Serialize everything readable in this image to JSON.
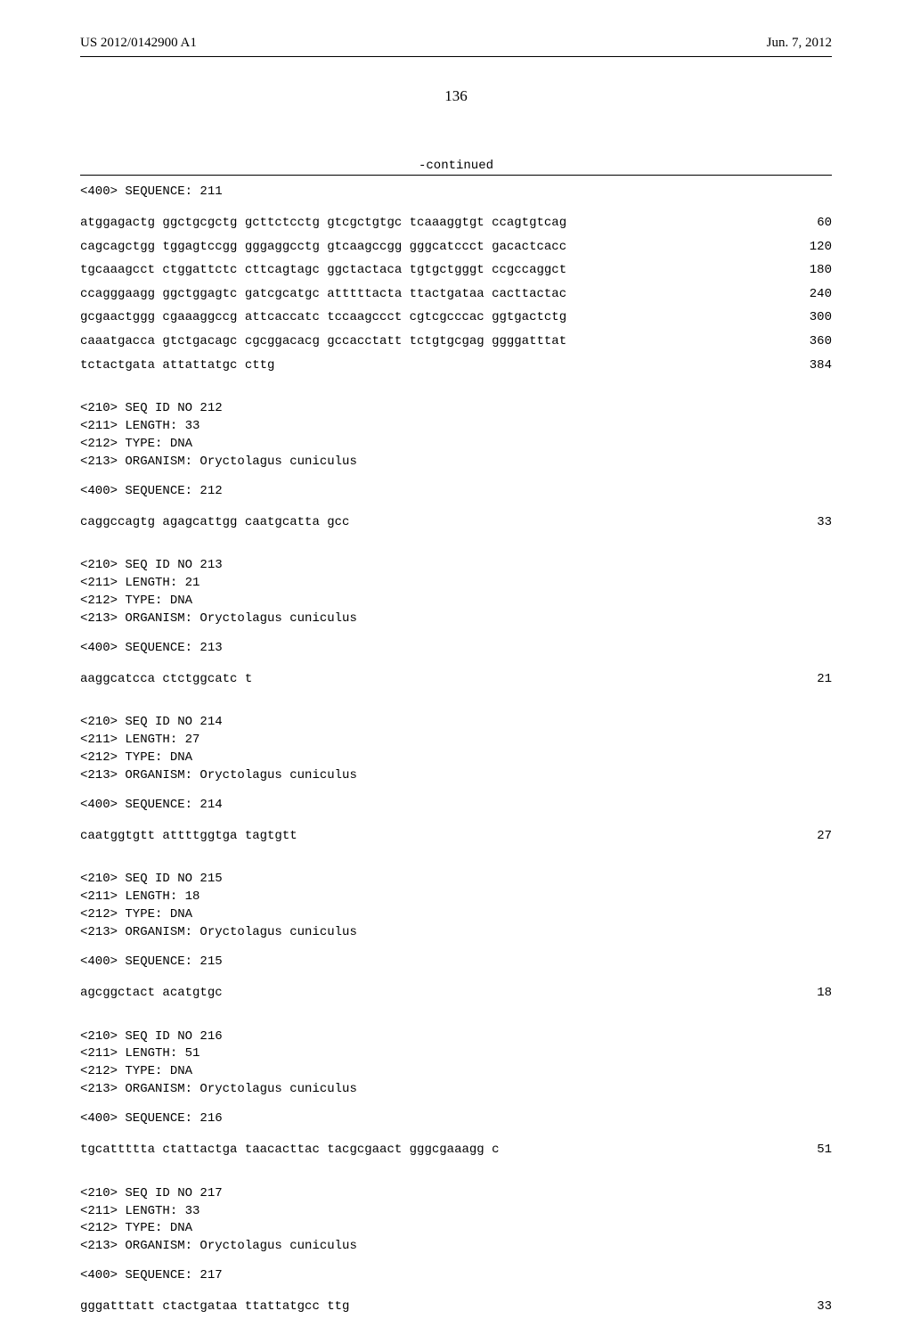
{
  "header": {
    "left": "US 2012/0142900 A1",
    "right": "Jun. 7, 2012"
  },
  "page_number": "136",
  "continued_label": "-continued",
  "top_seq_label": "<400> SEQUENCE: 211",
  "seq211": {
    "lines": [
      {
        "text": "atggagactg ggctgcgctg gcttctcctg gtcgctgtgc tcaaaggtgt ccagtgtcag",
        "num": "60"
      },
      {
        "text": "cagcagctgg tggagtccgg gggaggcctg gtcaagccgg gggcatccct gacactcacc",
        "num": "120"
      },
      {
        "text": "tgcaaagcct ctggattctc cttcagtagc ggctactaca tgtgctgggt ccgccaggct",
        "num": "180"
      },
      {
        "text": "ccagggaagg ggctggagtc gatcgcatgc atttttacta ttactgataa cacttactac",
        "num": "240"
      },
      {
        "text": "gcgaactggg cgaaaggccg attcaccatc tccaagccct cgtcgcccac ggtgactctg",
        "num": "300"
      },
      {
        "text": "caaatgacca gtctgacagc cgcggacacg gccacctatt tctgtgcgag ggggatttat",
        "num": "360"
      },
      {
        "text": "tctactgata attattatgc cttg",
        "num": "384"
      }
    ]
  },
  "entries": [
    {
      "meta": "<210> SEQ ID NO 212\n<211> LENGTH: 33\n<212> TYPE: DNA\n<213> ORGANISM: Oryctolagus cuniculus",
      "seq_label": "<400> SEQUENCE: 212",
      "lines": [
        {
          "text": "caggccagtg agagcattgg caatgcatta gcc",
          "num": "33"
        }
      ]
    },
    {
      "meta": "<210> SEQ ID NO 213\n<211> LENGTH: 21\n<212> TYPE: DNA\n<213> ORGANISM: Oryctolagus cuniculus",
      "seq_label": "<400> SEQUENCE: 213",
      "lines": [
        {
          "text": "aaggcatcca ctctggcatc t",
          "num": "21"
        }
      ]
    },
    {
      "meta": "<210> SEQ ID NO 214\n<211> LENGTH: 27\n<212> TYPE: DNA\n<213> ORGANISM: Oryctolagus cuniculus",
      "seq_label": "<400> SEQUENCE: 214",
      "lines": [
        {
          "text": "caatggtgtt attttggtga tagtgtt",
          "num": "27"
        }
      ]
    },
    {
      "meta": "<210> SEQ ID NO 215\n<211> LENGTH: 18\n<212> TYPE: DNA\n<213> ORGANISM: Oryctolagus cuniculus",
      "seq_label": "<400> SEQUENCE: 215",
      "lines": [
        {
          "text": "agcggctact acatgtgc",
          "num": "18"
        }
      ]
    },
    {
      "meta": "<210> SEQ ID NO 216\n<211> LENGTH: 51\n<212> TYPE: DNA\n<213> ORGANISM: Oryctolagus cuniculus",
      "seq_label": "<400> SEQUENCE: 216",
      "lines": [
        {
          "text": "tgcattttta ctattactga taacacttac tacgcgaact gggcgaaagg c",
          "num": "51"
        }
      ]
    },
    {
      "meta": "<210> SEQ ID NO 217\n<211> LENGTH: 33\n<212> TYPE: DNA\n<213> ORGANISM: Oryctolagus cuniculus",
      "seq_label": "<400> SEQUENCE: 217",
      "lines": [
        {
          "text": "gggatttatt ctactgataa ttattatgcc ttg",
          "num": "33"
        }
      ]
    }
  ]
}
